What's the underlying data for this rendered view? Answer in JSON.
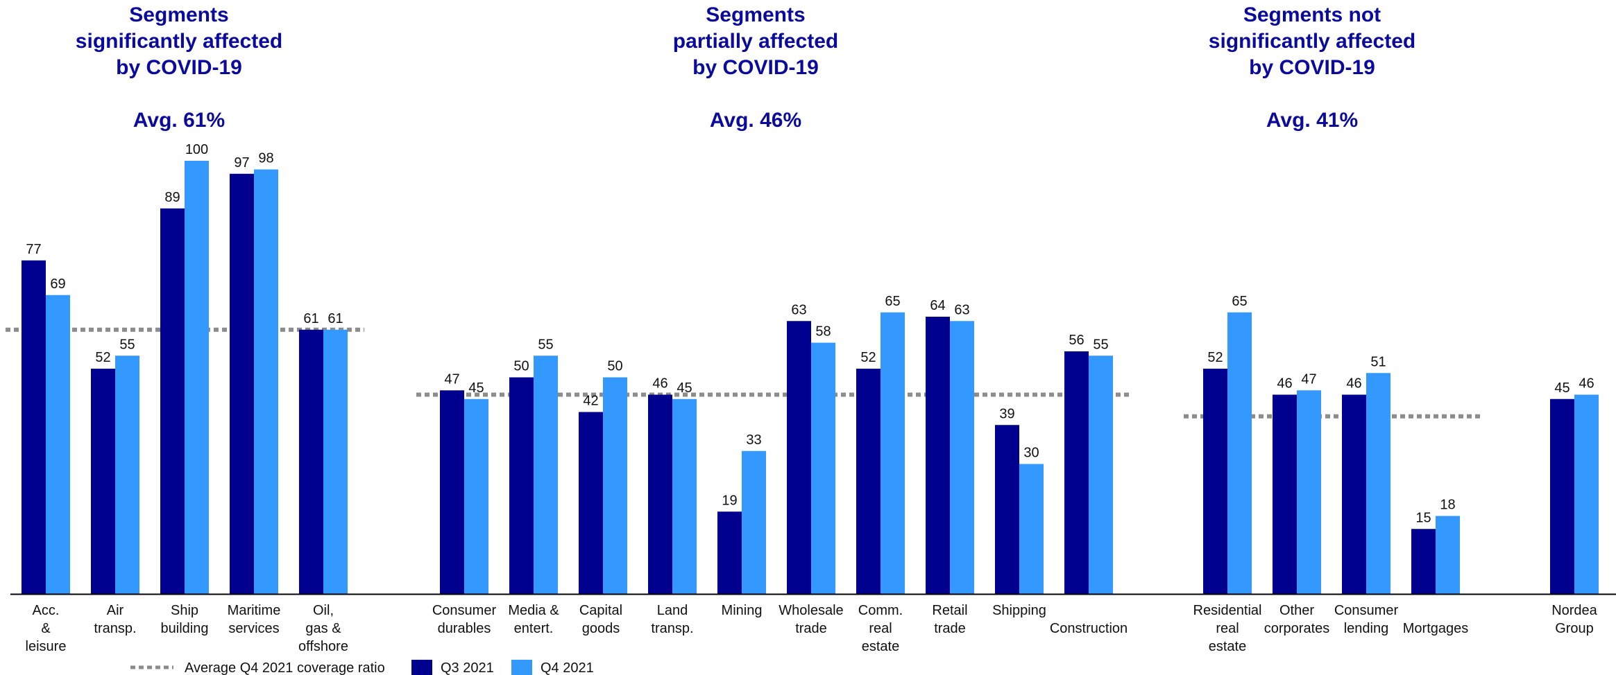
{
  "chart_data": {
    "type": "bar",
    "groups": [
      {
        "title": [
          "Segments",
          "significantly affected",
          "by COVID-19"
        ],
        "avg_label": "Avg. 61%",
        "avg": 61
      },
      {
        "title": [
          "Segments",
          "partially affected",
          "by COVID-19"
        ],
        "avg_label": "Avg. 46%",
        "avg": 46
      },
      {
        "title": [
          "Segments not",
          "significantly affected",
          "by COVID-19"
        ],
        "avg_label": "Avg. 41%",
        "avg": 41
      }
    ],
    "categories": [
      {
        "label": [
          "Acc.",
          "&",
          "leisure"
        ],
        "group": 0,
        "q3": 77,
        "q4": 69
      },
      {
        "label": [
          "Air",
          "transp."
        ],
        "group": 0,
        "q3": 52,
        "q4": 55
      },
      {
        "label": [
          "Ship",
          "building"
        ],
        "group": 0,
        "q3": 89,
        "q4": 100
      },
      {
        "label": [
          "Maritime",
          "services"
        ],
        "group": 0,
        "q3": 97,
        "q4": 98
      },
      {
        "label": [
          "Oil,",
          "gas &",
          "offshore"
        ],
        "group": 0,
        "q3": 61,
        "q4": 61
      },
      {
        "label": [
          "Consumer",
          "durables"
        ],
        "group": 1,
        "q3": 47,
        "q4": 45
      },
      {
        "label": [
          "Media &",
          "entert."
        ],
        "group": 1,
        "q3": 50,
        "q4": 55
      },
      {
        "label": [
          "Capital",
          "goods"
        ],
        "group": 1,
        "q3": 42,
        "q4": 50
      },
      {
        "label": [
          "Land",
          "transp."
        ],
        "group": 1,
        "q3": 46,
        "q4": 45
      },
      {
        "label": [
          "Mining"
        ],
        "group": 1,
        "q3": 19,
        "q4": 33
      },
      {
        "label": [
          "Wholesale",
          "trade"
        ],
        "group": 1,
        "q3": 63,
        "q4": 58
      },
      {
        "label": [
          "Comm.",
          "real",
          "estate"
        ],
        "group": 1,
        "q3": 52,
        "q4": 65
      },
      {
        "label": [
          "Retail",
          "trade"
        ],
        "group": 1,
        "q3": 64,
        "q4": 63
      },
      {
        "label": [
          "Shipping"
        ],
        "group": 1,
        "q3": 39,
        "q4": 30
      },
      {
        "label": [
          "",
          "Construction"
        ],
        "group": 1,
        "q3": 56,
        "q4": 55
      },
      {
        "label": [
          "Residential",
          "real",
          "estate"
        ],
        "group": 2,
        "q3": 52,
        "q4": 65
      },
      {
        "label": [
          "Other",
          "corporates"
        ],
        "group": 2,
        "q3": 46,
        "q4": 47
      },
      {
        "label": [
          "Consumer",
          "lending"
        ],
        "group": 2,
        "q3": 46,
        "q4": 51
      },
      {
        "label": [
          "",
          "Mortgages"
        ],
        "group": 2,
        "q3": 15,
        "q4": 18
      },
      {
        "label": [
          "Nordea",
          "Group"
        ],
        "group": -1,
        "q3": 45,
        "q4": 46
      }
    ],
    "series": [
      {
        "name": "Q3 2021",
        "key": "q3",
        "color": "#00008f"
      },
      {
        "name": "Q4 2021",
        "key": "q4",
        "color": "#3399ff"
      }
    ],
    "avg_line_name": "Average Q4 2021 coverage ratio",
    "avg_line_color": "#8c8c8c",
    "ylim": [
      0,
      100
    ],
    "legend_position": "bottom-left",
    "grid": false
  }
}
